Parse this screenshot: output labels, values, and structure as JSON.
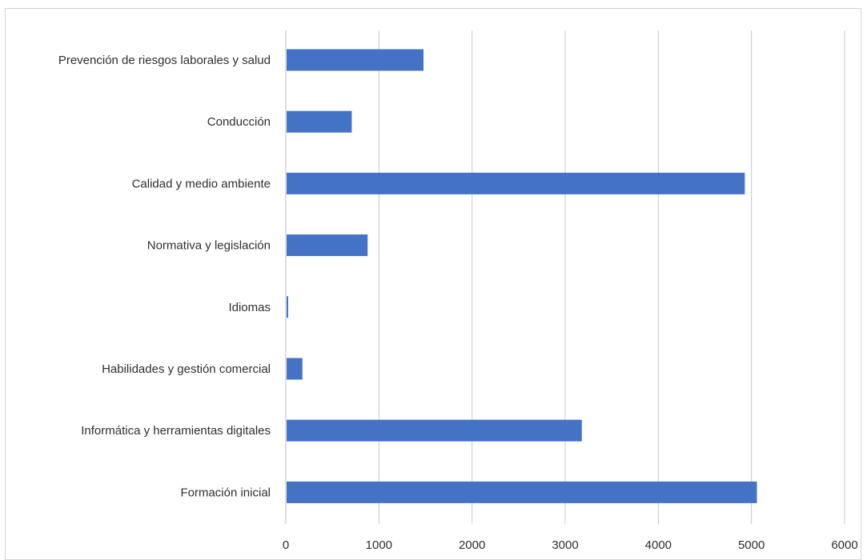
{
  "chart_data": {
    "type": "bar",
    "orientation": "horizontal",
    "categories": [
      "Prevención de riesgos laborales y salud",
      "Conducción",
      "Calidad y medio ambiente",
      "Normativa y legislación",
      "Idiomas",
      "Habilidades y gestión comercial",
      "Informática y herramientas digitales",
      "Formación inicial"
    ],
    "values": [
      1470,
      700,
      4920,
      870,
      15,
      170,
      3170,
      5050
    ],
    "xlim": [
      0,
      6000
    ],
    "xticks": [
      "0",
      "1000",
      "2000",
      "3000",
      "4000",
      "5000",
      "6000"
    ],
    "bar_color": "#4472c4",
    "grid": "vertical",
    "legend": "none"
  }
}
